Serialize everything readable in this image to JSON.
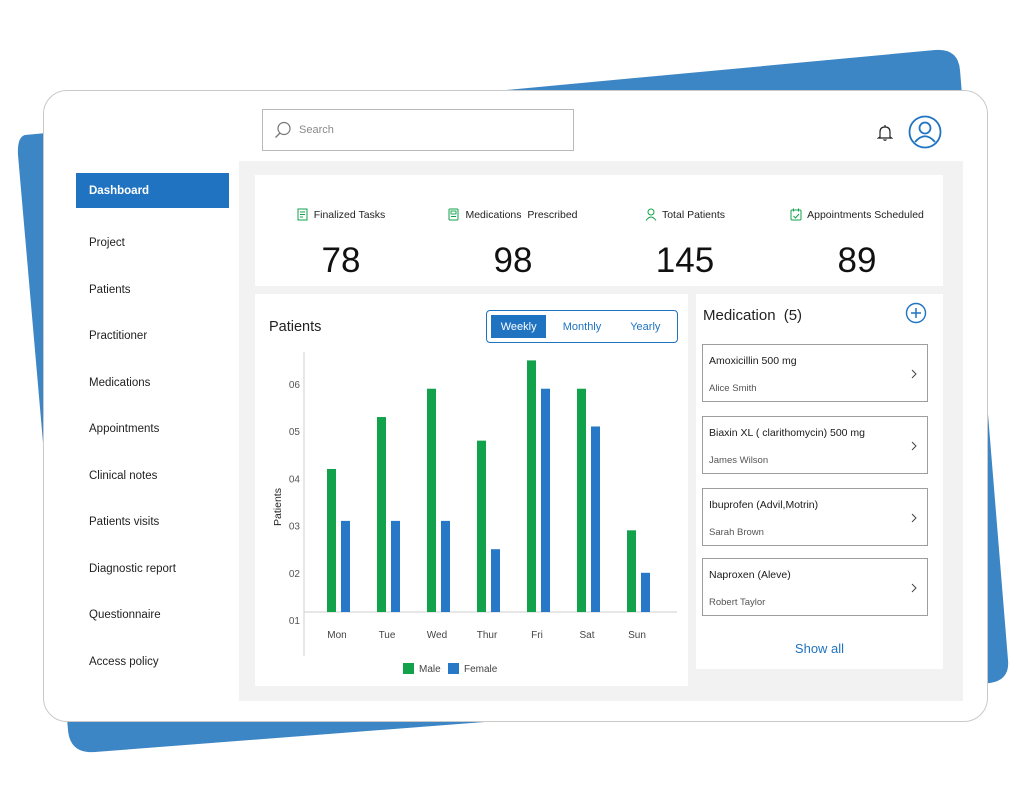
{
  "colors": {
    "accent": "#1f73c1",
    "male": "#12a24b",
    "female": "#2878c8",
    "backdrop": "#3d86c6"
  },
  "search": {
    "placeholder": "Search",
    "icon": "search-icon"
  },
  "header": {
    "bell_icon": "bell-icon",
    "avatar_icon": "user-avatar-icon"
  },
  "sidebar": {
    "items": [
      {
        "label": "Dashboard",
        "active": true
      },
      {
        "label": "Project"
      },
      {
        "label": "Patients"
      },
      {
        "label": "Practitioner"
      },
      {
        "label": "Medications"
      },
      {
        "label": "Appointments"
      },
      {
        "label": "Clinical notes"
      },
      {
        "label": "Patients visits"
      },
      {
        "label": "Diagnostic report"
      },
      {
        "label": "Questionnaire"
      },
      {
        "label": "Access policy"
      }
    ]
  },
  "stats": [
    {
      "label": "Finalized Tasks",
      "value": "78",
      "icon": "task-list-icon"
    },
    {
      "label": "Medications  Prescribed",
      "value": "98",
      "icon": "prescription-icon"
    },
    {
      "label": "Total Patients",
      "value": "145",
      "icon": "person-icon"
    },
    {
      "label": "Appointments Scheduled",
      "value": "89",
      "icon": "calendar-check-icon"
    }
  ],
  "patients_chart": {
    "title": "Patients",
    "tabs": [
      {
        "label": "Weekly",
        "active": true
      },
      {
        "label": "Monthly"
      },
      {
        "label": "Yearly"
      }
    ]
  },
  "chart_data": {
    "type": "bar",
    "title": "",
    "xlabel": "",
    "ylabel": "Patients",
    "categories": [
      "Mon",
      "Tue",
      "Wed",
      "Thur",
      "Fri",
      "Sat",
      "Sun"
    ],
    "y_ticks": [
      "01",
      "02",
      "03",
      "04",
      "05",
      "06"
    ],
    "ylim": [
      1,
      6.5
    ],
    "grid": false,
    "legend": "bottom",
    "series": [
      {
        "name": "Male",
        "color": "#12a24b",
        "values": [
          4.2,
          5.3,
          5.9,
          4.8,
          6.5,
          5.9,
          2.9
        ]
      },
      {
        "name": "Female",
        "color": "#2878c8",
        "values": [
          3.1,
          3.1,
          3.1,
          2.5,
          5.9,
          5.1,
          2.0
        ]
      }
    ]
  },
  "medication": {
    "title": "Medication",
    "count": "(5)",
    "add_icon": "plus-circle-icon",
    "items": [
      {
        "name": "Amoxicillin 500 mg",
        "person": "Alice Smith"
      },
      {
        "name": "Biaxin XL ( clarithomycin) 500 mg",
        "person": "James Wilson"
      },
      {
        "name": "Ibuprofen (Advil,Motrin)",
        "person": "Sarah Brown"
      },
      {
        "name": "Naproxen (Aleve)",
        "person": "Robert Taylor"
      }
    ],
    "show_all": "Show all"
  }
}
